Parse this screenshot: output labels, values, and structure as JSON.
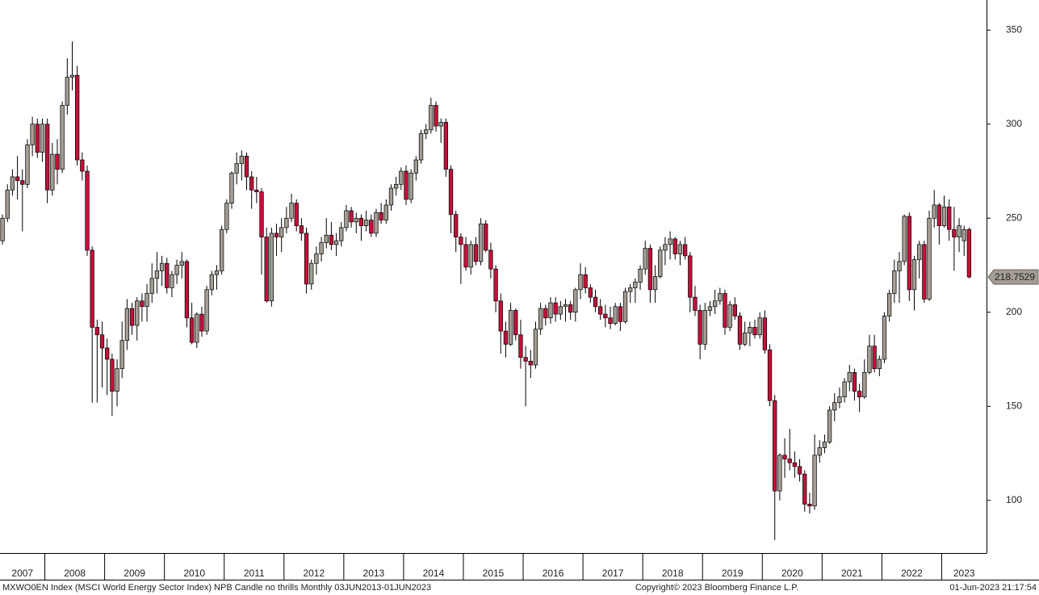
{
  "chart_data": {
    "type": "candlestick",
    "footer_left": "MXWO0EN Index (MSCI World Energy Sector Index) NPB Candle no thrills  Monthly 03JUN2013-01JUN2023",
    "footer_center": "Copyright© 2023 Bloomberg Finance L.P.",
    "footer_right": "01-Jun-2023 21:17:54",
    "up_color": "#a39d93",
    "down_color": "#c4103a",
    "xlim": [
      2007.25,
      2023.75
    ],
    "xticks": [
      2007,
      2008,
      2009,
      2010,
      2011,
      2012,
      2013,
      2014,
      2015,
      2016,
      2017,
      2018,
      2019,
      2020,
      2021,
      2022,
      2023
    ],
    "ylim": [
      72,
      366
    ],
    "yticks": [
      100,
      150,
      200,
      250,
      300,
      350
    ],
    "ohlc": [
      [
        238,
        252,
        236,
        250
      ],
      [
        250,
        268,
        248,
        265
      ],
      [
        265,
        276,
        262,
        272
      ],
      [
        272,
        283,
        260,
        270
      ],
      [
        270,
        276,
        243,
        268
      ],
      [
        268,
        292,
        266,
        289
      ],
      [
        289,
        304,
        283,
        300
      ],
      [
        300,
        303,
        282,
        285
      ],
      [
        285,
        303,
        280,
        300
      ],
      [
        300,
        303,
        258,
        265
      ],
      [
        265,
        290,
        262,
        284
      ],
      [
        284,
        292,
        268,
        276
      ],
      [
        276,
        312,
        274,
        310
      ],
      [
        310,
        335,
        305,
        325
      ],
      [
        325,
        344,
        318,
        326
      ],
      [
        326,
        331,
        278,
        281
      ],
      [
        281,
        285,
        270,
        275
      ],
      [
        275,
        278,
        230,
        233
      ],
      [
        233,
        235,
        152,
        192
      ],
      [
        192,
        196,
        152,
        188
      ],
      [
        188,
        195,
        160,
        181
      ],
      [
        181,
        186,
        156,
        175
      ],
      [
        175,
        178,
        145,
        158
      ],
      [
        158,
        175,
        150,
        170
      ],
      [
        170,
        195,
        165,
        185
      ],
      [
        185,
        207,
        180,
        202
      ],
      [
        202,
        205,
        188,
        193
      ],
      [
        193,
        208,
        185,
        206
      ],
      [
        206,
        210,
        195,
        203
      ],
      [
        203,
        215,
        195,
        210
      ],
      [
        210,
        226,
        205,
        218
      ],
      [
        218,
        232,
        210,
        222
      ],
      [
        222,
        230,
        214,
        226
      ],
      [
        226,
        229,
        210,
        213
      ],
      [
        213,
        222,
        208,
        220
      ],
      [
        220,
        228,
        215,
        225
      ],
      [
        225,
        232,
        218,
        227
      ],
      [
        227,
        228,
        192,
        197
      ],
      [
        197,
        205,
        183,
        184
      ],
      [
        184,
        200,
        181,
        199
      ],
      [
        199,
        203,
        187,
        190
      ],
      [
        190,
        214,
        188,
        212
      ],
      [
        212,
        222,
        209,
        220
      ],
      [
        220,
        225,
        212,
        222
      ],
      [
        222,
        246,
        220,
        244
      ],
      [
        244,
        260,
        242,
        258
      ],
      [
        258,
        275,
        255,
        274
      ],
      [
        274,
        285,
        268,
        279
      ],
      [
        279,
        286,
        270,
        283
      ],
      [
        283,
        285,
        265,
        272
      ],
      [
        272,
        275,
        255,
        265
      ],
      [
        265,
        272,
        258,
        264
      ],
      [
        264,
        266,
        220,
        240
      ],
      [
        240,
        245,
        205,
        206
      ],
      [
        206,
        245,
        203,
        242
      ],
      [
        242,
        247,
        230,
        240
      ],
      [
        240,
        250,
        232,
        245
      ],
      [
        245,
        256,
        242,
        250
      ],
      [
        250,
        263,
        248,
        258
      ],
      [
        258,
        260,
        243,
        246
      ],
      [
        246,
        250,
        238,
        242
      ],
      [
        242,
        245,
        210,
        215
      ],
      [
        215,
        228,
        212,
        226
      ],
      [
        226,
        235,
        220,
        231
      ],
      [
        231,
        240,
        227,
        237
      ],
      [
        237,
        250,
        234,
        241
      ],
      [
        241,
        248,
        233,
        236
      ],
      [
        236,
        242,
        230,
        238
      ],
      [
        238,
        248,
        235,
        245
      ],
      [
        245,
        257,
        243,
        254
      ],
      [
        254,
        256,
        245,
        248
      ],
      [
        248,
        253,
        242,
        250
      ],
      [
        250,
        252,
        238,
        246
      ],
      [
        246,
        254,
        243,
        249
      ],
      [
        249,
        252,
        240,
        242
      ],
      [
        242,
        255,
        240,
        253
      ],
      [
        253,
        258,
        247,
        249
      ],
      [
        249,
        260,
        247,
        257
      ],
      [
        257,
        268,
        254,
        266
      ],
      [
        266,
        272,
        262,
        268
      ],
      [
        268,
        277,
        265,
        275
      ],
      [
        275,
        278,
        257,
        260
      ],
      [
        260,
        276,
        258,
        274
      ],
      [
        274,
        283,
        270,
        281
      ],
      [
        281,
        297,
        279,
        295
      ],
      [
        295,
        300,
        292,
        297
      ],
      [
        297,
        314,
        295,
        310
      ],
      [
        310,
        312,
        296,
        299
      ],
      [
        299,
        303,
        290,
        301
      ],
      [
        301,
        303,
        272,
        276
      ],
      [
        276,
        278,
        242,
        252
      ],
      [
        252,
        254,
        232,
        240
      ],
      [
        240,
        242,
        215,
        236
      ],
      [
        236,
        240,
        222,
        224
      ],
      [
        224,
        238,
        220,
        236
      ],
      [
        236,
        240,
        225,
        227
      ],
      [
        227,
        250,
        225,
        247
      ],
      [
        247,
        249,
        232,
        233
      ],
      [
        233,
        237,
        218,
        223
      ],
      [
        223,
        225,
        200,
        206
      ],
      [
        206,
        210,
        178,
        190
      ],
      [
        190,
        195,
        176,
        183
      ],
      [
        183,
        205,
        182,
        201
      ],
      [
        201,
        202,
        185,
        188
      ],
      [
        188,
        196,
        170,
        176
      ],
      [
        176,
        182,
        150,
        174
      ],
      [
        174,
        180,
        165,
        172
      ],
      [
        172,
        195,
        170,
        191
      ],
      [
        191,
        205,
        188,
        202
      ],
      [
        202,
        204,
        193,
        197
      ],
      [
        197,
        208,
        194,
        205
      ],
      [
        205,
        208,
        195,
        199
      ],
      [
        199,
        206,
        196,
        203
      ],
      [
        203,
        207,
        195,
        204
      ],
      [
        204,
        206,
        196,
        200
      ],
      [
        200,
        213,
        195,
        212
      ],
      [
        212,
        226,
        207,
        220
      ],
      [
        220,
        224,
        210,
        213
      ],
      [
        213,
        215,
        205,
        208
      ],
      [
        208,
        212,
        200,
        203
      ],
      [
        203,
        207,
        196,
        199
      ],
      [
        199,
        204,
        192,
        197
      ],
      [
        197,
        203,
        191,
        194
      ],
      [
        194,
        205,
        193,
        203
      ],
      [
        203,
        205,
        190,
        195
      ],
      [
        195,
        213,
        194,
        211
      ],
      [
        211,
        215,
        205,
        213
      ],
      [
        213,
        218,
        205,
        216
      ],
      [
        216,
        225,
        212,
        223
      ],
      [
        223,
        238,
        220,
        234
      ],
      [
        234,
        236,
        205,
        212
      ],
      [
        212,
        225,
        205,
        219
      ],
      [
        219,
        235,
        218,
        233
      ],
      [
        233,
        240,
        225,
        236
      ],
      [
        236,
        243,
        228,
        239
      ],
      [
        239,
        240,
        228,
        231
      ],
      [
        231,
        238,
        225,
        236
      ],
      [
        236,
        240,
        228,
        230
      ],
      [
        230,
        232,
        200,
        208
      ],
      [
        208,
        214,
        198,
        201
      ],
      [
        201,
        204,
        175,
        183
      ],
      [
        183,
        205,
        180,
        201
      ],
      [
        201,
        206,
        198,
        203
      ],
      [
        203,
        212,
        199,
        206
      ],
      [
        206,
        213,
        204,
        210
      ],
      [
        210,
        212,
        188,
        192
      ],
      [
        192,
        206,
        190,
        204
      ],
      [
        204,
        208,
        196,
        198
      ],
      [
        198,
        200,
        180,
        183
      ],
      [
        183,
        195,
        182,
        189
      ],
      [
        189,
        195,
        182,
        192
      ],
      [
        192,
        196,
        186,
        188
      ],
      [
        188,
        200,
        186,
        197
      ],
      [
        197,
        201,
        178,
        180
      ],
      [
        180,
        183,
        150,
        153
      ],
      [
        153,
        156,
        79,
        105
      ],
      [
        105,
        125,
        100,
        124
      ],
      [
        124,
        133,
        112,
        122
      ],
      [
        122,
        138,
        116,
        120
      ],
      [
        120,
        126,
        112,
        118
      ],
      [
        118,
        122,
        110,
        114
      ],
      [
        114,
        116,
        94,
        98
      ],
      [
        98,
        104,
        93,
        97
      ],
      [
        97,
        135,
        95,
        124
      ],
      [
        124,
        132,
        120,
        128
      ],
      [
        128,
        135,
        125,
        131
      ],
      [
        131,
        150,
        130,
        148
      ],
      [
        148,
        157,
        142,
        152
      ],
      [
        152,
        160,
        149,
        155
      ],
      [
        155,
        165,
        152,
        163
      ],
      [
        163,
        172,
        158,
        168
      ],
      [
        168,
        170,
        153,
        158
      ],
      [
        158,
        162,
        147,
        155
      ],
      [
        155,
        175,
        154,
        168
      ],
      [
        168,
        188,
        167,
        182
      ],
      [
        182,
        188,
        168,
        170
      ],
      [
        170,
        177,
        166,
        175
      ],
      [
        175,
        200,
        173,
        198
      ],
      [
        198,
        212,
        195,
        210
      ],
      [
        210,
        228,
        205,
        222
      ],
      [
        222,
        232,
        205,
        227
      ],
      [
        227,
        252,
        225,
        251
      ],
      [
        251,
        253,
        206,
        212
      ],
      [
        212,
        230,
        201,
        228
      ],
      [
        228,
        238,
        218,
        236
      ],
      [
        236,
        238,
        205,
        207
      ],
      [
        207,
        254,
        206,
        250
      ],
      [
        250,
        265,
        245,
        257
      ],
      [
        257,
        258,
        236,
        246
      ],
      [
        246,
        262,
        245,
        256
      ],
      [
        256,
        260,
        238,
        244
      ],
      [
        244,
        256,
        222,
        240
      ],
      [
        240,
        250,
        232,
        246
      ],
      [
        238,
        246,
        230,
        244
      ],
      [
        244,
        245,
        218,
        218.7529
      ]
    ]
  }
}
